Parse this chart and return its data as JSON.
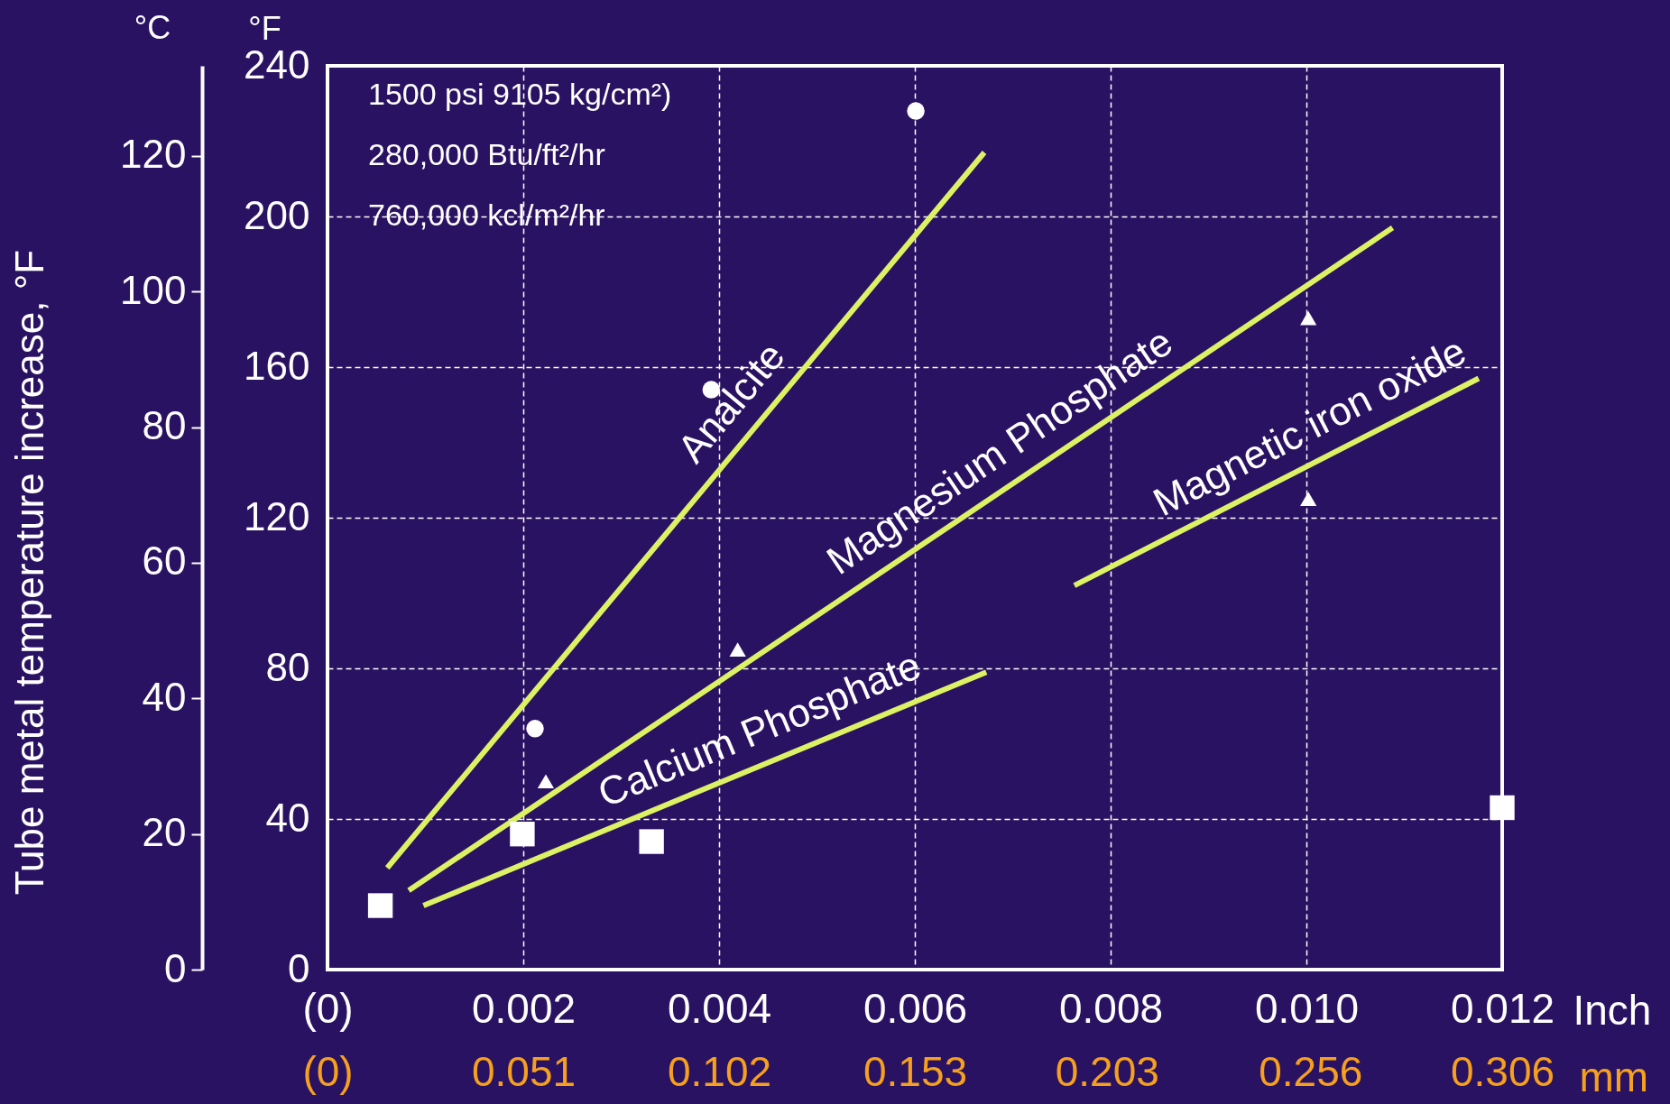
{
  "chart_data": {
    "type": "line",
    "ylabel": "°F",
    "xlabel": "Inch",
    "x2label": "mm",
    "y2label": "Tube metal temperature increase, °F",
    "annotations": [
      "°C",
      "1500 psi 9105 kg/cm²)",
      "280,000 Btu/ft²/hr",
      "760,000 kcl/m²/hr"
    ],
    "xlim": [
      0,
      0.012
    ],
    "xticks": [
      {
        "value": 0,
        "label": "(0)"
      },
      0.002,
      0.004,
      0.006,
      0.008,
      {
        "value": 0.01,
        "label": "0.010"
      },
      0.012
    ],
    "x2lim": [
      0,
      0.306
    ],
    "x2ticks": [
      {
        "value": 0,
        "label": "(0)"
      },
      0.051,
      0.102,
      0.153,
      0.203,
      0.256,
      0.306
    ],
    "ylim": [
      0,
      240
    ],
    "yticks": [
      0,
      40,
      80,
      120,
      160,
      200,
      240
    ],
    "y2lim": [
      0,
      133.3
    ],
    "y2ticks": [
      0,
      20,
      40,
      60,
      80,
      100,
      120
    ],
    "grid": true,
    "series": [
      {
        "name": "Analcite",
        "color": "#dcf264",
        "x": [
          0.00061,
          0.00671
        ],
        "values": [
          27,
          217
        ]
      },
      {
        "name": "Magnesium Phosphate",
        "color": "#dcf264",
        "x": [
          0.00083,
          0.01088
        ],
        "values": [
          21,
          197
        ]
      },
      {
        "name": "Calcium Phosphate",
        "color": "#dcf264",
        "x": [
          0.00098,
          0.00673
        ],
        "values": [
          17,
          79
        ]
      },
      {
        "name": "Magnetic iron oxide",
        "color": "#dcf264",
        "x": [
          0.00763,
          0.01176
        ],
        "values": [
          102,
          157
        ]
      },
      {
        "type": "scatter",
        "marker": "circle",
        "color": "#ffffff",
        "x": [
          0.00212,
          0.00392,
          0.00601
        ],
        "values": [
          64,
          154,
          228
        ]
      },
      {
        "type": "scatter",
        "marker": "triangle",
        "color": "#ffffff",
        "x": [
          0.00223,
          0.00419,
          0.01002,
          0.01002
        ],
        "values": [
          50,
          85,
          173,
          125
        ]
      },
      {
        "type": "scatter",
        "marker": "square",
        "color": "#ffffff",
        "x": [
          0.00054,
          0.00199,
          0.00331,
          0.012
        ],
        "values": [
          17,
          36,
          34,
          43
        ]
      }
    ]
  }
}
